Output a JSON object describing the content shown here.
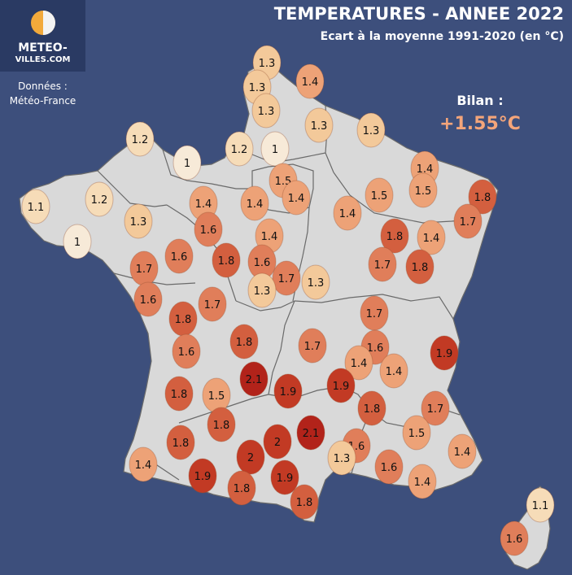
{
  "header": {
    "title": "TEMPERATURES - ANNEE 2022",
    "subtitle": "Ecart à la moyenne 1991-2020 (en °C)"
  },
  "logo": {
    "line1": "METEO-",
    "line2": "VILLES.COM",
    "icon": "sun-moon-icon"
  },
  "source": {
    "line1": "Données :",
    "line2": "Météo-France"
  },
  "bilan": {
    "label": "Bilan :",
    "value": "+1.55°C"
  },
  "colors": {
    "background": "#3d4f7c",
    "land": "#d9d9d9",
    "border": "#7a7a7a",
    "bilan_accent": "#f4a57a",
    "scale": [
      "#f7ead8",
      "#f6dcb8",
      "#f3c99a",
      "#eda277",
      "#e07e5a",
      "#d35f3f",
      "#c23a24",
      "#b2231a"
    ]
  },
  "markers": [
    {
      "label": "1.3",
      "value": 1.3
    },
    {
      "label": "1.3",
      "value": 1.3
    },
    {
      "label": "1.4",
      "value": 1.4
    },
    {
      "label": "1.3",
      "value": 1.3
    },
    {
      "label": "1.3",
      "value": 1.3
    },
    {
      "label": "1.3",
      "value": 1.3
    },
    {
      "label": "1.2",
      "value": 1.2
    },
    {
      "label": "1",
      "value": 1.0
    },
    {
      "label": "1.2",
      "value": 1.2
    },
    {
      "label": "1",
      "value": 1.0
    },
    {
      "label": "1.4",
      "value": 1.4
    },
    {
      "label": "1.5",
      "value": 1.5
    },
    {
      "label": "1.4",
      "value": 1.4
    },
    {
      "label": "1.1",
      "value": 1.1
    },
    {
      "label": "1.2",
      "value": 1.2
    },
    {
      "label": "1.3",
      "value": 1.3
    },
    {
      "label": "1.4",
      "value": 1.4
    },
    {
      "label": "1.4",
      "value": 1.4
    },
    {
      "label": "1.4",
      "value": 1.4
    },
    {
      "label": "1.5",
      "value": 1.5
    },
    {
      "label": "1.5",
      "value": 1.5
    },
    {
      "label": "1.8",
      "value": 1.8
    },
    {
      "label": "1.7",
      "value": 1.7
    },
    {
      "label": "1",
      "value": 1.0
    },
    {
      "label": "1.6",
      "value": 1.6
    },
    {
      "label": "1.4",
      "value": 1.4
    },
    {
      "label": "1.8",
      "value": 1.8
    },
    {
      "label": "1.4",
      "value": 1.4
    },
    {
      "label": "1.7",
      "value": 1.7
    },
    {
      "label": "1.6",
      "value": 1.6
    },
    {
      "label": "1.8",
      "value": 1.8
    },
    {
      "label": "1.6",
      "value": 1.6
    },
    {
      "label": "1.7",
      "value": 1.7
    },
    {
      "label": "1.7",
      "value": 1.7
    },
    {
      "label": "1.8",
      "value": 1.8
    },
    {
      "label": "1.6",
      "value": 1.6
    },
    {
      "label": "1.3",
      "value": 1.3
    },
    {
      "label": "1.3",
      "value": 1.3
    },
    {
      "label": "1.7",
      "value": 1.7
    },
    {
      "label": "1.8",
      "value": 1.8
    },
    {
      "label": "1.7",
      "value": 1.7
    },
    {
      "label": "1.8",
      "value": 1.8
    },
    {
      "label": "1.6",
      "value": 1.6
    },
    {
      "label": "1.7",
      "value": 1.7
    },
    {
      "label": "1.6",
      "value": 1.6
    },
    {
      "label": "1.9",
      "value": 1.9
    },
    {
      "label": "1.4",
      "value": 1.4
    },
    {
      "label": "1.4",
      "value": 1.4
    },
    {
      "label": "2.1",
      "value": 2.1
    },
    {
      "label": "1.9",
      "value": 1.9
    },
    {
      "label": "1.9",
      "value": 1.9
    },
    {
      "label": "1.8",
      "value": 1.8
    },
    {
      "label": "1.5",
      "value": 1.5
    },
    {
      "label": "1.8",
      "value": 1.8
    },
    {
      "label": "1.7",
      "value": 1.7
    },
    {
      "label": "1.8",
      "value": 1.8
    },
    {
      "label": "1.8",
      "value": 1.8
    },
    {
      "label": "2.1",
      "value": 2.1
    },
    {
      "label": "2",
      "value": 2.0
    },
    {
      "label": "1.6",
      "value": 1.6
    },
    {
      "label": "1.5",
      "value": 1.5
    },
    {
      "label": "1.4",
      "value": 1.4
    },
    {
      "label": "2",
      "value": 2.0
    },
    {
      "label": "1.3",
      "value": 1.3
    },
    {
      "label": "1.6",
      "value": 1.6
    },
    {
      "label": "1.4",
      "value": 1.4
    },
    {
      "label": "1.9",
      "value": 1.9
    },
    {
      "label": "1.9",
      "value": 1.9
    },
    {
      "label": "1.4",
      "value": 1.4
    },
    {
      "label": "1.8",
      "value": 1.8
    },
    {
      "label": "1.8",
      "value": 1.8
    },
    {
      "label": "1.1",
      "value": 1.1
    },
    {
      "label": "1.6",
      "value": 1.6
    }
  ]
}
